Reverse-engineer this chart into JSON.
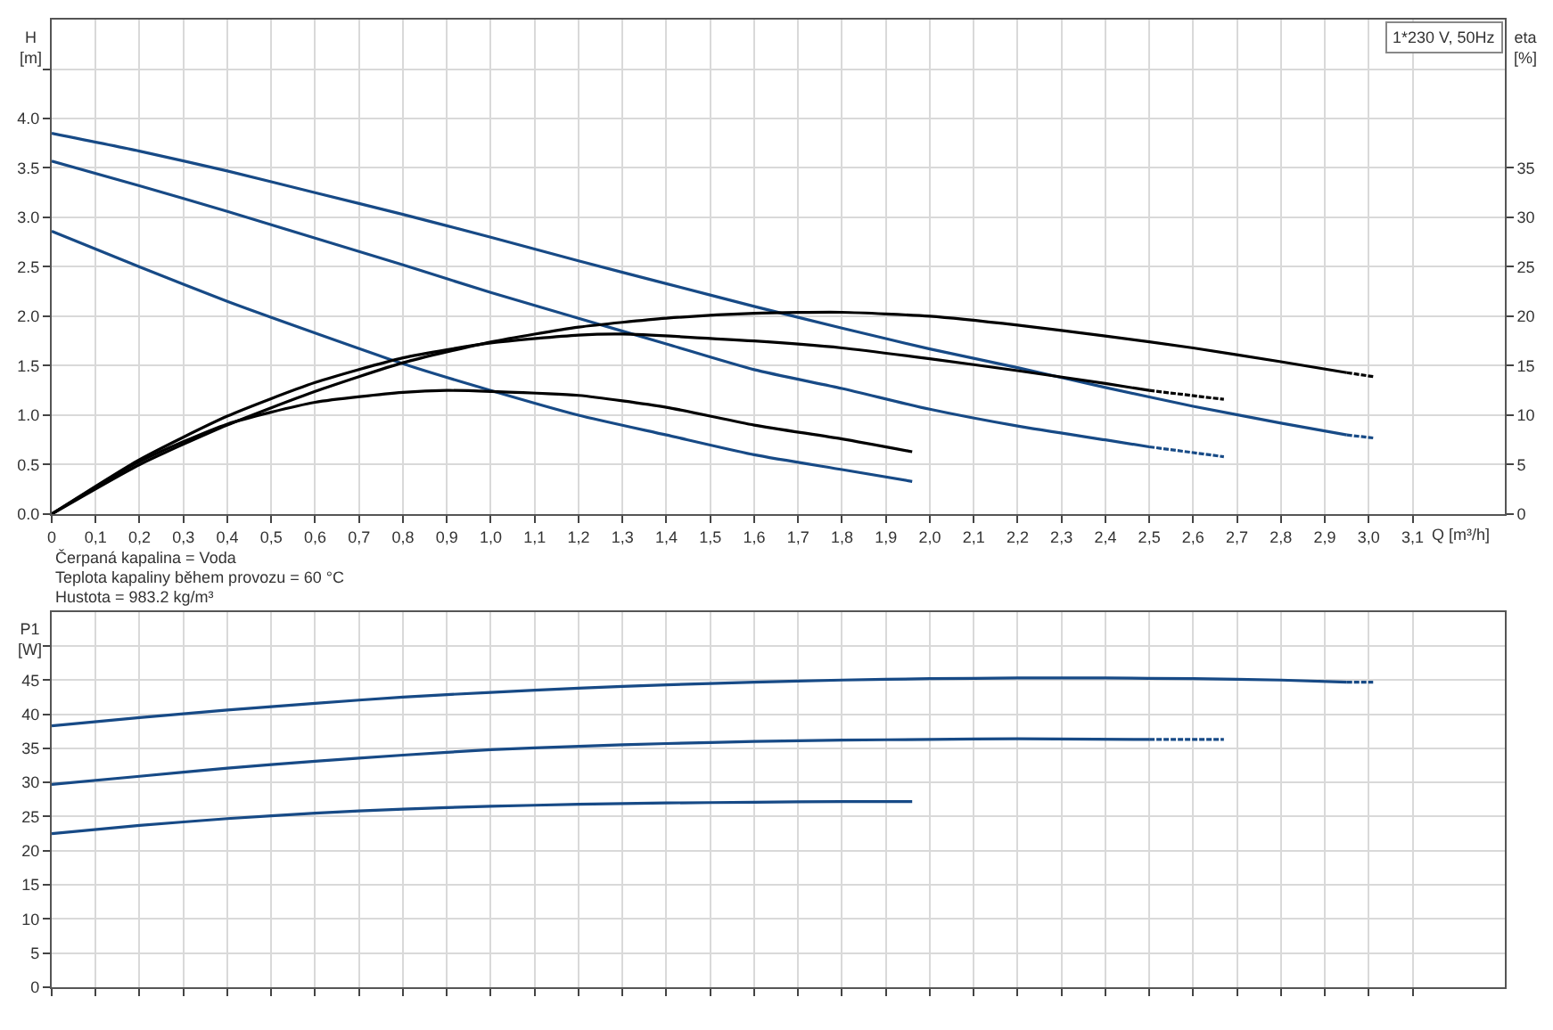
{
  "chart_data": [
    {
      "type": "line",
      "xlabel": "Q [m³/h]",
      "ylabel": "H\n[m]",
      "y2label": "eta\n[%]",
      "annotations": [
        "1*230 V, 50Hz",
        "Čerpaná kapalina = Voda",
        "Teplota kapaliny během provozu = 60 °C",
        "Hustota = 983.2 kg/m³"
      ],
      "xlim": [
        0,
        3.31
      ],
      "xticks": [
        0,
        {
          "value": 0.1,
          "label": "0,1"
        },
        {
          "value": 0.2,
          "label": "0,2"
        },
        {
          "value": 0.3,
          "label": "0,3"
        },
        {
          "value": 0.4,
          "label": "0,4"
        },
        {
          "value": 0.5,
          "label": "0,5"
        },
        {
          "value": 0.6,
          "label": "0,6"
        },
        {
          "value": 0.7,
          "label": "0,7"
        },
        {
          "value": 0.8,
          "label": "0,8"
        },
        {
          "value": 0.9,
          "label": "0,9"
        },
        {
          "value": 1.0,
          "label": "1,0"
        },
        {
          "value": 1.1,
          "label": "1,1"
        },
        {
          "value": 1.2,
          "label": "1,2"
        },
        {
          "value": 1.3,
          "label": "1,3"
        },
        {
          "value": 1.4,
          "label": "1,4"
        },
        {
          "value": 1.5,
          "label": "1,5"
        },
        {
          "value": 1.6,
          "label": "1,6"
        },
        {
          "value": 1.7,
          "label": "1,7"
        },
        {
          "value": 1.8,
          "label": "1,8"
        },
        {
          "value": 1.9,
          "label": "1,9"
        },
        {
          "value": 2.0,
          "label": "2,0"
        },
        {
          "value": 2.1,
          "label": "2,1"
        },
        {
          "value": 2.2,
          "label": "2,2"
        },
        {
          "value": 2.3,
          "label": "2,3"
        },
        {
          "value": 2.4,
          "label": "2,4"
        },
        {
          "value": 2.5,
          "label": "2,5"
        },
        {
          "value": 2.6,
          "label": "2,6"
        },
        {
          "value": 2.7,
          "label": "2,7"
        },
        {
          "value": 2.8,
          "label": "2,8"
        },
        {
          "value": 2.9,
          "label": "2,9"
        },
        {
          "value": 3.0,
          "label": "3,0"
        },
        {
          "value": 3.1,
          "label": "3,1"
        }
      ],
      "ylim": [
        0,
        5
      ],
      "yticks": [
        {
          "value": 0,
          "label": "0.0"
        },
        {
          "value": 0.5,
          "label": "0.5"
        },
        {
          "value": 1,
          "label": "1.0"
        },
        {
          "value": 1.5,
          "label": "1.5"
        },
        {
          "value": 2,
          "label": "2.0"
        },
        {
          "value": 2.5,
          "label": "2.5"
        },
        {
          "value": 3,
          "label": "3.0"
        },
        {
          "value": 3.5,
          "label": "3.5"
        },
        {
          "value": 4,
          "label": "4.0"
        },
        {
          "value": 4.5,
          "label": null
        }
      ],
      "y2lim": [
        0,
        50
      ],
      "y2ticks": [
        0,
        5,
        10,
        15,
        20,
        25,
        30,
        35
      ],
      "grid": true,
      "marker": "none",
      "series": [
        {
          "color": "#174a86",
          "line_style": "solid",
          "x": [
            0,
            0.2,
            0.4,
            0.6,
            0.8,
            1.0,
            1.2,
            1.4,
            1.6,
            1.8,
            2.0,
            2.2,
            2.4,
            2.6,
            2.8,
            2.95
          ],
          "values": [
            3.85,
            3.67,
            3.47,
            3.25,
            3.03,
            2.8,
            2.56,
            2.33,
            2.1,
            1.88,
            1.67,
            1.48,
            1.28,
            1.09,
            0.92,
            0.8
          ]
        },
        {
          "color": "#174a86",
          "line_style": "dashed",
          "x": [
            2.95,
            3.01
          ],
          "values": [
            0.8,
            0.77
          ]
        },
        {
          "color": "#174a86",
          "line_style": "solid",
          "x": [
            0,
            0.2,
            0.4,
            0.6,
            0.8,
            1.0,
            1.2,
            1.4,
            1.6,
            1.8,
            2.0,
            2.2,
            2.4,
            2.5
          ],
          "values": [
            3.57,
            3.32,
            3.06,
            2.79,
            2.52,
            2.24,
            1.98,
            1.72,
            1.46,
            1.27,
            1.06,
            0.89,
            0.75,
            0.68
          ]
        },
        {
          "color": "#174a86",
          "line_style": "dashed",
          "x": [
            2.5,
            2.67
          ],
          "values": [
            0.68,
            0.58
          ]
        },
        {
          "color": "#174a86",
          "line_style": "solid",
          "x": [
            0,
            0.2,
            0.4,
            0.6,
            0.8,
            1.0,
            1.2,
            1.4,
            1.6,
            1.8,
            1.96
          ],
          "values": [
            2.86,
            2.5,
            2.15,
            1.83,
            1.52,
            1.25,
            1.0,
            0.8,
            0.6,
            0.45,
            0.33
          ]
        },
        {
          "color": "#000000",
          "line_style": "solid",
          "axis": "y2",
          "x": [
            0,
            0.2,
            0.4,
            0.6,
            0.8,
            1.0,
            1.2,
            1.4,
            1.6,
            1.8,
            2.0,
            2.2,
            2.4,
            2.6,
            2.8,
            2.95
          ],
          "values": [
            0,
            5.0,
            9.0,
            12.4,
            15.3,
            17.4,
            18.9,
            19.8,
            20.3,
            20.4,
            20.0,
            19.1,
            18.0,
            16.8,
            15.4,
            14.3
          ]
        },
        {
          "color": "#000000",
          "line_style": "dashed",
          "axis": "y2",
          "x": [
            2.95,
            3.01
          ],
          "values": [
            14.3,
            13.9
          ]
        },
        {
          "color": "#000000",
          "line_style": "solid",
          "axis": "y2",
          "x": [
            0,
            0.2,
            0.4,
            0.6,
            0.8,
            1.0,
            1.2,
            1.3,
            1.6,
            1.8,
            2.0,
            2.2,
            2.4,
            2.5
          ],
          "values": [
            0,
            5.5,
            9.9,
            13.3,
            15.8,
            17.3,
            18.1,
            18.2,
            17.5,
            16.8,
            15.7,
            14.5,
            13.2,
            12.5
          ]
        },
        {
          "color": "#000000",
          "line_style": "dashed",
          "axis": "y2",
          "x": [
            2.5,
            2.67
          ],
          "values": [
            12.5,
            11.6
          ]
        },
        {
          "color": "#000000",
          "line_style": "solid",
          "axis": "y2",
          "x": [
            0,
            0.2,
            0.4,
            0.6,
            0.8,
            0.9,
            1.0,
            1.2,
            1.4,
            1.6,
            1.8,
            1.96
          ],
          "values": [
            0,
            5.3,
            9.1,
            11.3,
            12.3,
            12.5,
            12.4,
            12.0,
            10.8,
            9.0,
            7.6,
            6.3
          ]
        }
      ]
    },
    {
      "type": "line",
      "ylabel": "P1\n[W]",
      "tick_labels": "y",
      "xlim": [
        0,
        3.31
      ],
      "xticks": [
        0,
        0.1,
        0.2,
        0.3,
        0.4,
        0.5,
        0.6,
        0.7,
        0.8,
        0.9,
        1.0,
        1.1,
        1.2,
        1.3,
        1.4,
        1.5,
        1.6,
        1.7,
        1.8,
        1.9,
        2.0,
        2.1,
        2.2,
        2.3,
        2.4,
        2.5,
        2.6,
        2.7,
        2.8,
        2.9,
        3.0,
        3.1
      ],
      "ylim": [
        0,
        55
      ],
      "yticks": [
        0,
        5,
        10,
        15,
        20,
        25,
        30,
        35,
        40,
        45,
        {
          "value": 50,
          "label": null
        }
      ],
      "grid": true,
      "marker": "none",
      "series": [
        {
          "color": "#174a86",
          "line_style": "solid",
          "x": [
            0,
            0.2,
            0.4,
            0.6,
            0.8,
            1.0,
            1.2,
            1.4,
            1.6,
            1.8,
            2.0,
            2.2,
            2.4,
            2.6,
            2.8,
            2.95
          ],
          "values": [
            38.3,
            39.5,
            40.6,
            41.6,
            42.5,
            43.2,
            43.8,
            44.3,
            44.7,
            45.0,
            45.2,
            45.3,
            45.3,
            45.2,
            45.0,
            44.7
          ]
        },
        {
          "color": "#174a86",
          "line_style": "dashed",
          "x": [
            2.95,
            3.01
          ],
          "values": [
            44.7,
            44.7
          ]
        },
        {
          "color": "#174a86",
          "line_style": "solid",
          "x": [
            0,
            0.2,
            0.4,
            0.6,
            0.8,
            1.0,
            1.2,
            1.4,
            1.6,
            1.8,
            2.0,
            2.2,
            2.5
          ],
          "values": [
            29.7,
            30.9,
            32.1,
            33.1,
            34.0,
            34.8,
            35.3,
            35.7,
            36.0,
            36.2,
            36.3,
            36.4,
            36.3
          ]
        },
        {
          "color": "#174a86",
          "line_style": "dashed",
          "x": [
            2.5,
            2.67
          ],
          "values": [
            36.3,
            36.3
          ]
        },
        {
          "color": "#174a86",
          "line_style": "solid",
          "x": [
            0,
            0.2,
            0.4,
            0.6,
            0.8,
            1.0,
            1.2,
            1.4,
            1.6,
            1.8,
            1.96
          ],
          "values": [
            22.5,
            23.7,
            24.7,
            25.5,
            26.1,
            26.5,
            26.8,
            27.0,
            27.1,
            27.2,
            27.2
          ]
        }
      ]
    }
  ]
}
